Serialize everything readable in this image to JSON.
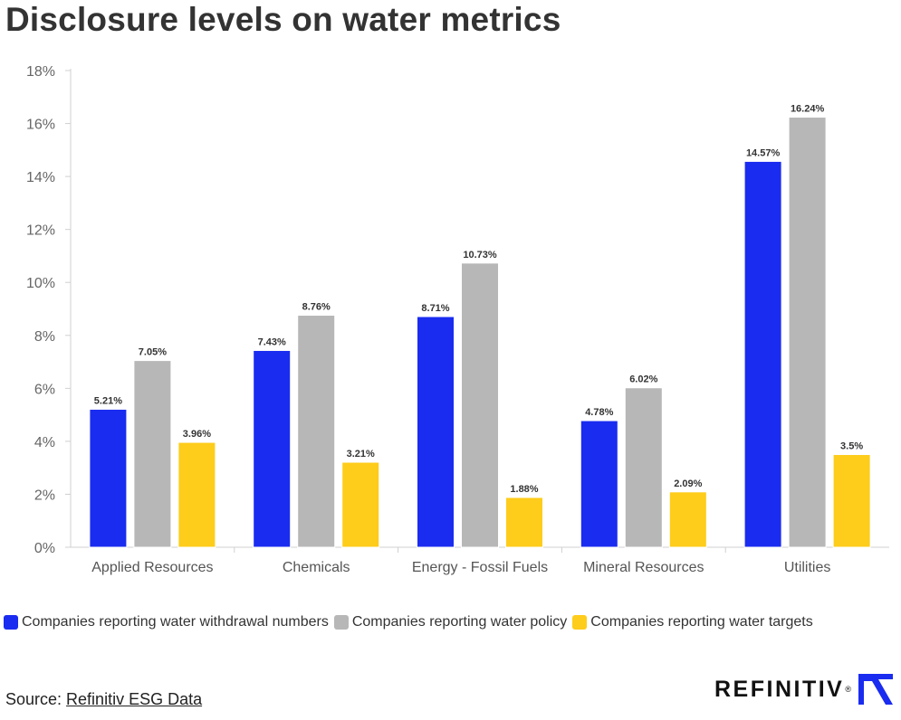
{
  "title": "Disclosure levels on water metrics",
  "chart_data": {
    "type": "bar",
    "categories": [
      "Applied Resources",
      "Chemicals",
      "Energy - Fossil Fuels",
      "Mineral Resources",
      "Utilities"
    ],
    "series": [
      {
        "name": "Companies reporting water withdrawal numbers",
        "color": "#1a2cf0",
        "values": [
          5.21,
          7.43,
          8.71,
          4.78,
          14.57
        ],
        "labels": [
          "5.21%",
          "7.43%",
          "8.71%",
          "4.78%",
          "14.57%"
        ]
      },
      {
        "name": "Companies reporting water policy",
        "color": "#b7b7b7",
        "values": [
          7.05,
          8.76,
          10.73,
          6.02,
          16.24
        ],
        "labels": [
          "7.05%",
          "8.76%",
          "10.73%",
          "6.02%",
          "16.24%"
        ]
      },
      {
        "name": "Companies reporting water targets",
        "color": "#fecc1a",
        "values": [
          3.96,
          3.21,
          1.88,
          2.09,
          3.5
        ],
        "labels": [
          "3.96%",
          "3.21%",
          "1.88%",
          "2.09%",
          "3.5%"
        ]
      }
    ],
    "ylim": [
      0,
      18
    ],
    "yticks": [
      0,
      2,
      4,
      6,
      8,
      10,
      12,
      14,
      16,
      18
    ],
    "ytick_labels": [
      "0%",
      "2%",
      "4%",
      "6%",
      "8%",
      "10%",
      "12%",
      "14%",
      "16%",
      "18%"
    ],
    "xlabel": "",
    "ylabel": "",
    "grid": false,
    "legend_position": "bottom-left"
  },
  "source": {
    "prefix": "Source: ",
    "link_text": "Refinitiv ESG Data"
  },
  "logo": {
    "text": "REFINITIV",
    "registered": "®",
    "mark_icon": "refinitiv-r-mark-icon"
  }
}
